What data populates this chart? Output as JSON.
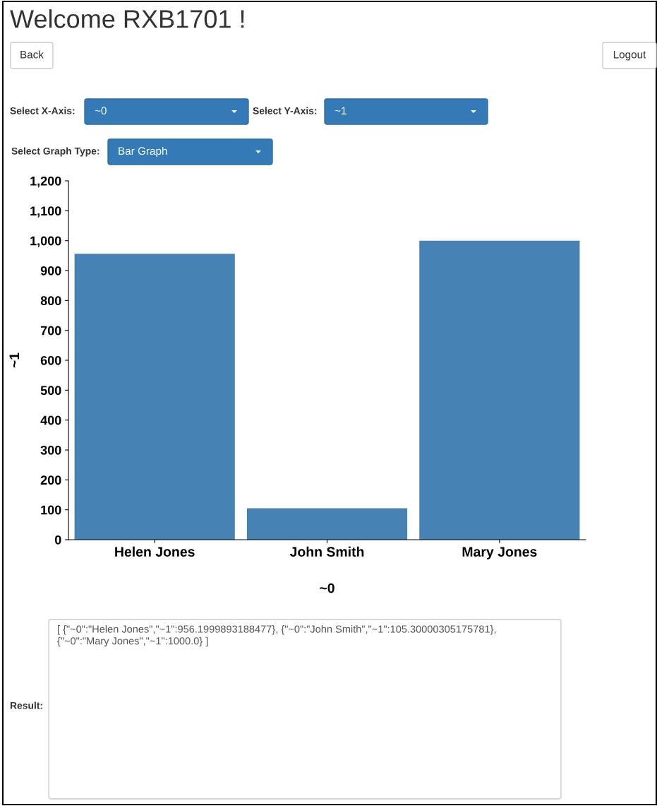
{
  "chart_data": {
    "type": "bar",
    "title": "Welcome RXB1701 !",
    "categories": [
      "Helen Jones",
      "John Smith",
      "Mary Jones"
    ],
    "values": [
      956.2,
      105.3,
      1000
    ],
    "color": "#4682b4",
    "xlabel": "~0",
    "ylabel": "~1",
    "ylim": [
      0,
      1200
    ],
    "yticks": [
      0,
      100,
      200,
      300,
      400,
      500,
      600,
      700,
      800,
      900,
      {
        "value": 1000,
        "label": "1,000"
      },
      {
        "value": 1100,
        "label": "1,100"
      },
      {
        "value": 1200,
        "label": "1,200"
      }
    ],
    "grid": false,
    "legend": false,
    "annotations": [
      "Back",
      "Logout",
      "Select X-Axis:",
      "~0",
      "Select Y-Axis:",
      "~1",
      "Select Graph Type:",
      "Bar Graph",
      "Result:",
      "[ {\"~0\":\"Helen Jones\",\"~1\":956.1999893188477}, {\"~0\":\"John Smith\",\"~1\":105.30000305175781},\n{\"~0\":\"Mary Jones\",\"~1\":1000.0} ]"
    ]
  }
}
